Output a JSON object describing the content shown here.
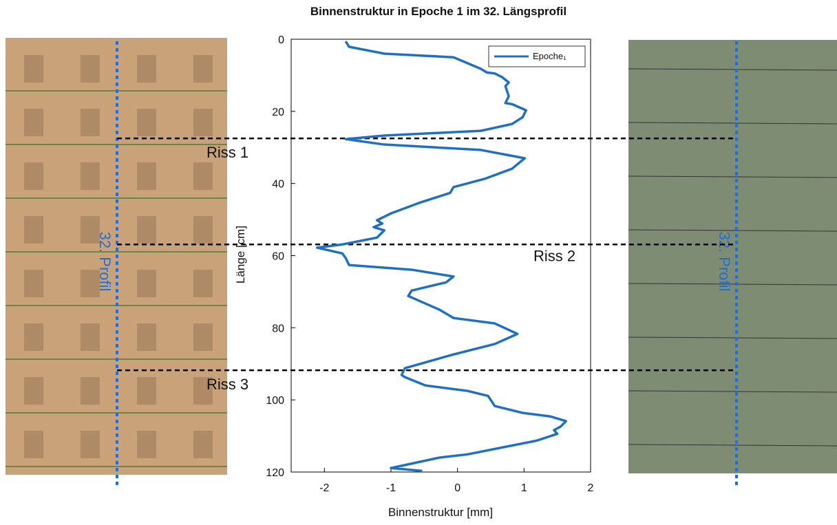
{
  "chart_data": {
    "type": "line",
    "title": "Binnenstruktur in Epoche 1 im 32. Längsprofil",
    "xlabel": "Binnenstruktur [mm]",
    "ylabel": "Länge [cm]",
    "xlim": [
      -2.5,
      2
    ],
    "xticks": [
      -2,
      -1,
      0,
      1,
      2
    ],
    "ylim": [
      0,
      120
    ],
    "yticks": [
      0,
      20,
      40,
      60,
      80,
      100,
      120
    ],
    "y_inverted": true,
    "grid": false,
    "legend": "upper right",
    "series": [
      {
        "name": "Epoche₁",
        "color": "#1f6fc5",
        "length": [
          0.6,
          2.1,
          4,
          5,
          8.2,
          9.2,
          9.5,
          10.5,
          12,
          13,
          15.8,
          17.7,
          18,
          19.7,
          21.6,
          23.5,
          25.4,
          26.7,
          27.7,
          29.2,
          30.7,
          33,
          35.9,
          38.7,
          41,
          42.6,
          45.4,
          48.3,
          50.2,
          51.1,
          52.1,
          53,
          55,
          56.9,
          57.8,
          59.4,
          60.7,
          62.6,
          63.9,
          65.8,
          67.4,
          69.7,
          71.2,
          75,
          77.3,
          78.8,
          81.7,
          84.5,
          87.4,
          91.2,
          93.1,
          93.7,
          96,
          97.5,
          98.9,
          101.7,
          103.6,
          104.6,
          105.9,
          107.4,
          108.4,
          109.4,
          111.3,
          115.1,
          116,
          118.9,
          119.7
        ],
        "values": [
          -1.68,
          -1.63,
          -1.1,
          -0.06,
          0.35,
          0.44,
          0.56,
          0.67,
          0.77,
          0.72,
          0.77,
          0.72,
          0.82,
          1.03,
          0.98,
          0.82,
          0.35,
          -1.1,
          -1.68,
          -1.1,
          0.35,
          1.01,
          0.82,
          0.41,
          -0.06,
          -0.11,
          -0.58,
          -1.0,
          -1.21,
          -1.13,
          -1.26,
          -1.1,
          -1.21,
          -1.73,
          -2.11,
          -1.73,
          -1.68,
          -1.63,
          -0.69,
          -0.06,
          -0.17,
          -0.69,
          -0.74,
          -0.27,
          -0.06,
          0.56,
          0.9,
          0.56,
          -0.06,
          -0.79,
          -0.84,
          -0.79,
          -0.48,
          0.15,
          0.46,
          0.56,
          0.98,
          1.4,
          1.63,
          1.55,
          1.45,
          1.5,
          1.19,
          0.15,
          -0.27,
          -1.0,
          -0.53
        ]
      }
    ],
    "cracks": [
      {
        "label": "Riss 1",
        "length": 27.5
      },
      {
        "label": "Riss 2",
        "length": 56.9
      },
      {
        "label": "Riss 3",
        "length": 91.8
      }
    ],
    "profile_label": "32. Profil"
  }
}
